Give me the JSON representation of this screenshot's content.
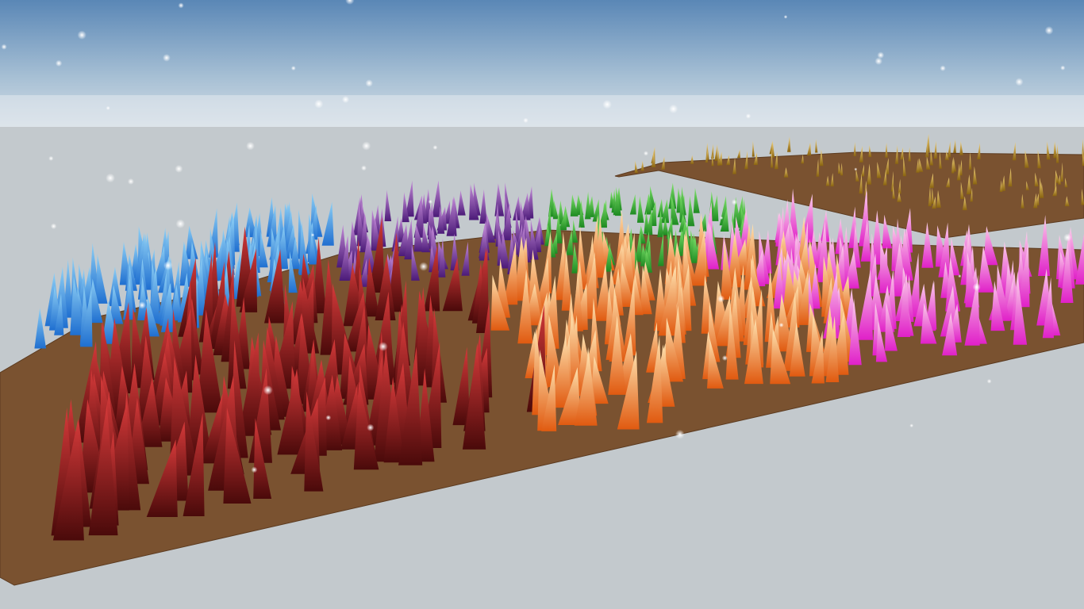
{
  "scene": {
    "title": "",
    "colors": {
      "sky_top": "#5a87b6",
      "sky_mid": "#a6bfd4",
      "horizon": "#dfe5ea",
      "ground": "#c3c9cd",
      "soil": "#7a5230",
      "soil_edge": "#5c3b20"
    },
    "objects": [
      {
        "name": "ground-plane"
      },
      {
        "name": "main-soil-patch"
      },
      {
        "name": "far-soil-patch"
      },
      {
        "name": "floating-sparkles"
      }
    ],
    "grass_patches": [
      {
        "name": "blue-grass-patch",
        "color_tip": "#8fd0f5",
        "color_base": "#1f6fd0"
      },
      {
        "name": "purple-grass-patch",
        "color_tip": "#c48bd8",
        "color_base": "#4b1a78"
      },
      {
        "name": "green-grass-patch",
        "color_tip": "#7fe36b",
        "color_base": "#1e8a22"
      },
      {
        "name": "red-grass-patch",
        "color_tip": "#d63a3a",
        "color_base": "#4a0a0a"
      },
      {
        "name": "orange-grass-patch",
        "color_tip": "#ffe3b0",
        "color_base": "#e05a10"
      },
      {
        "name": "pink-grass-patch",
        "color_tip": "#fbd0ea",
        "color_base": "#e020c8"
      },
      {
        "name": "far-yellow-grass-patch",
        "color_tip": "#f3d27a",
        "color_base": "#8a6410"
      }
    ]
  }
}
